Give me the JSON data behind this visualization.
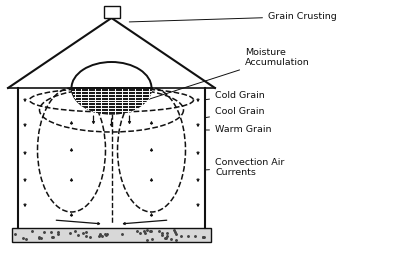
{
  "bg_color": "#ffffff",
  "line_color": "#111111",
  "labels": {
    "grain_crusting": "Grain Crusting",
    "moisture_accumulation": "Moisture\nAccumulation",
    "cold_grain": "Cold Grain",
    "cool_grain": "Cool Grain",
    "warm_grain": "Warm Grain",
    "convection_air": "Convection Air\nCurrents"
  },
  "figsize": [
    4.01,
    2.62
  ],
  "dpi": 100
}
